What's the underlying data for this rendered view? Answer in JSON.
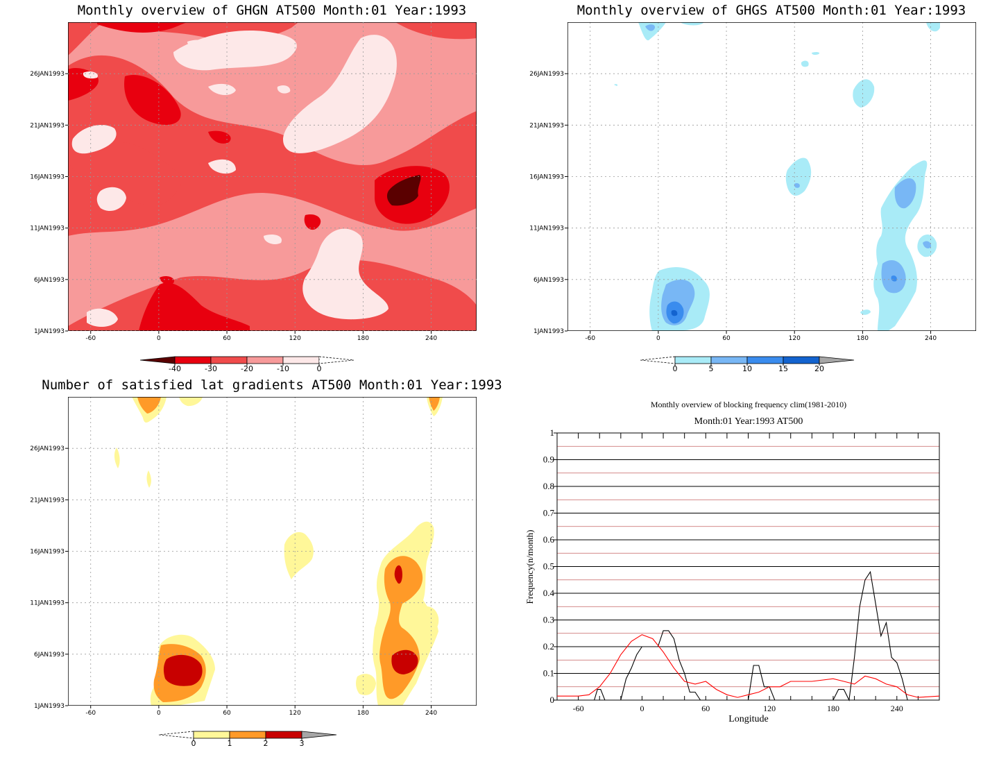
{
  "panels": {
    "ghgn": {
      "title": "Monthly overview of GHGN AT500 Month:01 Year:1993",
      "colorbar": {
        "levels": [
          "-40",
          "-30",
          "-20",
          "-10",
          "0"
        ],
        "colors": [
          "#5a0000",
          "#e8000f",
          "#f04b4b",
          "#f79a9a",
          "#fde8e8",
          "#ffffff"
        ]
      }
    },
    "ghgs": {
      "title": "Monthly overview of GHGS AT500 Month:01 Year:1993",
      "colorbar": {
        "levels": [
          "0",
          "5",
          "10",
          "15",
          "20"
        ],
        "colors": [
          "#ffffff",
          "#a9ebf7",
          "#78b7f5",
          "#3a8cee",
          "#1363cf",
          "#a6a6a6"
        ]
      }
    },
    "nsat": {
      "title": "Number of satisfied lat gradients AT500 Month:01 Year:1993",
      "colorbar": {
        "levels": [
          "0",
          "1",
          "2",
          "3"
        ],
        "colors": [
          "#ffffff",
          "#fff799",
          "#ff9a28",
          "#c80000",
          "#a6a6a6"
        ]
      }
    },
    "freq": {
      "title": "Monthly overview of blocking frequency clim(1981-2010)",
      "subtitle": "Month:01 Year:1993  AT500",
      "xlabel": "Longitude",
      "ylabel": "Frequency(n/month)"
    }
  },
  "axes": {
    "y_ticks": [
      "1JAN1993",
      "6JAN1993",
      "11JAN1993",
      "16JAN1993",
      "21JAN1993",
      "26JAN1993"
    ],
    "x_ticks": [
      "-60",
      "0",
      "60",
      "120",
      "180",
      "240"
    ]
  },
  "chart_data": [
    {
      "type": "heatmap",
      "title": "Monthly overview of GHGN AT500 Month:01 Year:1993",
      "x": [
        -80,
        280
      ],
      "y": [
        "1JAN1993",
        "31JAN1993"
      ],
      "levels": [
        -40,
        -30,
        -20,
        -10,
        0
      ],
      "dominant_value_range": [
        -30,
        0
      ],
      "minimum": {
        "x": 210,
        "y": "15JAN1993",
        "value_range": "< -40"
      }
    },
    {
      "type": "heatmap",
      "title": "Monthly overview of GHGS AT500 Month:01 Year:1993",
      "x": [
        -80,
        280
      ],
      "y": [
        "1JAN1993",
        "31JAN1993"
      ],
      "levels": [
        0,
        5,
        10,
        15,
        20
      ],
      "regions": [
        {
          "x": 20,
          "y": "3JAN1993",
          "value_range": "10-15"
        },
        {
          "x": 210,
          "y": "6JAN1993",
          "value_range": "10-15"
        },
        {
          "x": 220,
          "y": "14JAN1993",
          "value_range": "5-10"
        },
        {
          "x": 125,
          "y": "16JAN1993",
          "value_range": "0-5"
        },
        {
          "x": 180,
          "y": "25JAN1993",
          "value_range": "0-5"
        }
      ]
    },
    {
      "type": "heatmap",
      "title": "Number of satisfied lat gradients AT500 Month:01 Year:1993",
      "x": [
        -80,
        280
      ],
      "y": [
        "1JAN1993",
        "31JAN1993"
      ],
      "levels": [
        0,
        1,
        2,
        3
      ],
      "regions": [
        {
          "x": 20,
          "y": "3JAN1993",
          "value_range": "2-3"
        },
        {
          "x": 210,
          "y": "5JAN1993",
          "value_range": "2-3"
        },
        {
          "x": 210,
          "y": "14JAN1993",
          "value_range": "2-3"
        },
        {
          "x": 120,
          "y": "16JAN1993",
          "value_range": "0-1"
        },
        {
          "x": 240,
          "y": "30JAN1993",
          "value_range": "1-2"
        }
      ]
    },
    {
      "type": "line",
      "title": "Monthly overview of blocking frequency clim(1981-2010)",
      "subtitle": "Month:01 Year:1993  AT500",
      "xlabel": "Longitude",
      "ylabel": "Frequency(n/month)",
      "xlim": [
        -80,
        280
      ],
      "ylim": [
        0,
        1
      ],
      "x_ticks": [
        -60,
        0,
        60,
        120,
        180,
        240
      ],
      "y_ticks": [
        0,
        0.1,
        0.2,
        0.3,
        0.4,
        0.5,
        0.6,
        0.7,
        0.8,
        0.9,
        1
      ],
      "grid": true,
      "series": [
        {
          "color": "#000000",
          "x": [
            -80,
            -45,
            -42,
            -39,
            -35,
            -20,
            -15,
            -10,
            -5,
            0,
            5,
            10,
            15,
            20,
            25,
            30,
            35,
            40,
            45,
            50,
            55,
            60,
            100,
            105,
            110,
            115,
            120,
            125,
            130,
            180,
            185,
            190,
            195,
            200,
            205,
            210,
            215,
            220,
            225,
            230,
            235,
            240,
            245,
            250,
            280
          ],
          "y": [
            0,
            0,
            0.04,
            0.04,
            0,
            0,
            0.08,
            0.12,
            0.17,
            0.2,
            0.2,
            0.2,
            0.2,
            0.26,
            0.26,
            0.23,
            0.15,
            0.1,
            0.03,
            0.03,
            0,
            0,
            0,
            0.13,
            0.13,
            0.05,
            0.05,
            0,
            0,
            0,
            0.04,
            0.04,
            0,
            0.16,
            0.35,
            0.45,
            0.48,
            0.36,
            0.24,
            0.29,
            0.16,
            0.14,
            0.08,
            0,
            0
          ]
        },
        {
          "color": "#ff0000",
          "x": [
            -80,
            -60,
            -50,
            -40,
            -30,
            -20,
            -10,
            0,
            10,
            20,
            30,
            40,
            50,
            60,
            70,
            80,
            90,
            100,
            110,
            120,
            130,
            140,
            160,
            180,
            190,
            200,
            210,
            220,
            230,
            240,
            250,
            260,
            280
          ],
          "y": [
            0.015,
            0.015,
            0.02,
            0.05,
            0.1,
            0.17,
            0.22,
            0.245,
            0.23,
            0.18,
            0.12,
            0.07,
            0.06,
            0.07,
            0.04,
            0.02,
            0.01,
            0.02,
            0.03,
            0.05,
            0.05,
            0.07,
            0.07,
            0.08,
            0.07,
            0.06,
            0.09,
            0.08,
            0.06,
            0.05,
            0.02,
            0.01,
            0.015
          ]
        }
      ]
    }
  ]
}
